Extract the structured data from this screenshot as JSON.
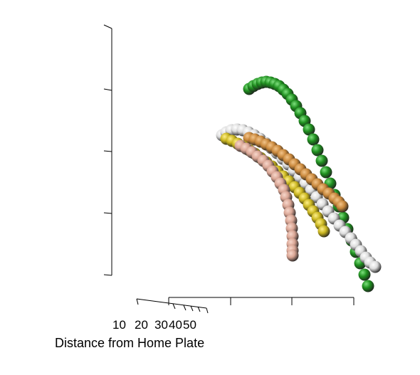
{
  "chart_data": {
    "type": "scatter",
    "projection": "3d",
    "xlabel": "Distance from Home Plate",
    "x_tick_labels": [
      "10",
      "20",
      "30",
      "40",
      "50"
    ],
    "marker": "sphere",
    "series": [
      {
        "color": "#1f8f1f",
        "highlight": "#7fe07f",
        "points": [
          [
            350,
            125
          ],
          [
            356,
            121
          ],
          [
            362,
            118
          ],
          [
            368,
            116
          ],
          [
            374,
            115
          ],
          [
            380,
            116
          ],
          [
            386,
            118
          ],
          [
            392,
            121
          ],
          [
            398,
            126
          ],
          [
            404,
            132
          ],
          [
            410,
            140
          ],
          [
            416,
            149
          ],
          [
            422,
            159
          ],
          [
            428,
            170
          ],
          [
            434,
            182
          ],
          [
            440,
            196
          ],
          [
            446,
            211
          ],
          [
            452,
            226
          ],
          [
            458,
            242
          ],
          [
            464,
            258
          ],
          [
            470,
            274
          ],
          [
            476,
            290
          ],
          [
            482,
            306
          ],
          [
            488,
            322
          ],
          [
            494,
            338
          ],
          [
            500,
            354
          ],
          [
            506,
            370
          ],
          [
            512,
            386
          ],
          [
            517,
            402
          ]
        ]
      },
      {
        "color": "#dcdcdc",
        "highlight": "#ffffff",
        "points": [
          [
            312,
            190
          ],
          [
            318,
            186
          ],
          [
            325,
            183
          ],
          [
            333,
            182
          ],
          [
            341,
            183
          ],
          [
            349,
            186
          ],
          [
            357,
            190
          ],
          [
            365,
            195
          ],
          [
            373,
            201
          ],
          [
            381,
            208
          ],
          [
            389,
            215
          ],
          [
            397,
            223
          ],
          [
            405,
            231
          ],
          [
            413,
            240
          ],
          [
            421,
            249
          ],
          [
            429,
            258
          ],
          [
            437,
            267
          ],
          [
            445,
            277
          ],
          [
            453,
            287
          ],
          [
            461,
            297
          ],
          [
            469,
            307
          ],
          [
            477,
            317
          ],
          [
            485,
            326
          ],
          [
            493,
            335
          ],
          [
            500,
            344
          ],
          [
            507,
            353
          ],
          [
            514,
            362
          ],
          [
            520,
            369
          ],
          [
            527,
            375
          ]
        ]
      },
      {
        "color": "#c9883c",
        "highlight": "#f2c48a",
        "points": [
          [
            350,
            194
          ],
          [
            358,
            196
          ],
          [
            366,
            199
          ],
          [
            374,
            203
          ],
          [
            382,
            207
          ],
          [
            390,
            212
          ],
          [
            398,
            218
          ],
          [
            406,
            224
          ],
          [
            414,
            231
          ],
          [
            422,
            238
          ],
          [
            430,
            245
          ],
          [
            438,
            252
          ],
          [
            446,
            259
          ],
          [
            454,
            266
          ],
          [
            462,
            272
          ],
          [
            470,
            279
          ],
          [
            476,
            284
          ],
          [
            481,
            290
          ]
        ]
      },
      {
        "color": "#c9b51f",
        "highlight": "#fff08a",
        "points": [
          [
            318,
            195
          ],
          [
            326,
            198
          ],
          [
            334,
            202
          ],
          [
            342,
            206
          ],
          [
            350,
            211
          ],
          [
            358,
            216
          ],
          [
            366,
            222
          ],
          [
            374,
            228
          ],
          [
            382,
            234
          ],
          [
            390,
            241
          ],
          [
            398,
            248
          ],
          [
            406,
            255
          ],
          [
            414,
            263
          ],
          [
            421,
            271
          ],
          [
            428,
            279
          ],
          [
            434,
            288
          ],
          [
            440,
            297
          ],
          [
            446,
            306
          ],
          [
            451,
            315
          ],
          [
            455,
            325
          ]
        ]
      },
      {
        "color": "#d9a594",
        "highlight": "#f7d7cb",
        "points": [
          [
            338,
            205
          ],
          [
            346,
            209
          ],
          [
            354,
            214
          ],
          [
            362,
            220
          ],
          [
            370,
            226
          ],
          [
            377,
            233
          ],
          [
            383,
            241
          ],
          [
            389,
            249
          ],
          [
            394,
            258
          ],
          [
            399,
            267
          ],
          [
            402,
            277
          ],
          [
            405,
            288
          ],
          [
            407,
            299
          ],
          [
            409,
            310
          ],
          [
            410,
            321
          ],
          [
            411,
            332
          ],
          [
            411,
            343
          ],
          [
            411,
            352
          ],
          [
            411,
            359
          ]
        ]
      }
    ]
  }
}
